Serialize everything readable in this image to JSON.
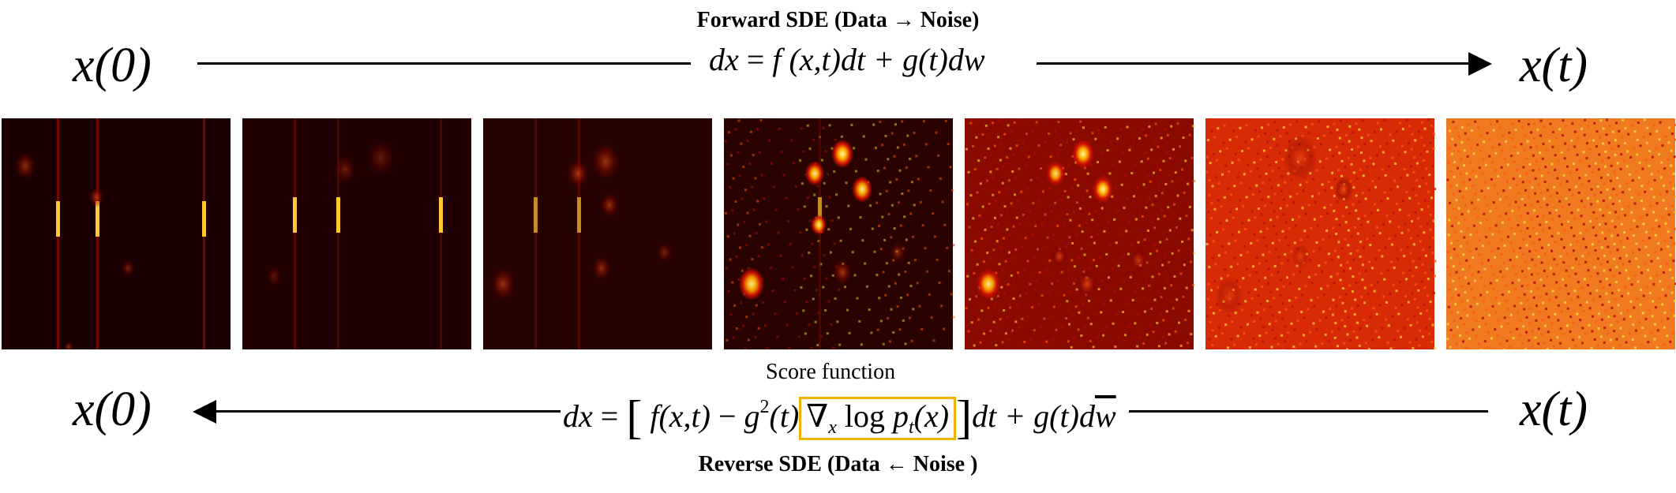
{
  "forward": {
    "title": "Forward SDE (Data → Noise)",
    "start_var": "x(0)",
    "end_var": "x(t)",
    "equation": {
      "lhs": "dx",
      "rhs_a": "f",
      "rhs_b": "(x,t)",
      "rhs_c": "dt + g",
      "rhs_d": "(t)",
      "rhs_e": "dw"
    }
  },
  "reverse": {
    "title": "Reverse SDE (Data ← Noise )",
    "start_var": "x(t)",
    "end_var": "x(0)",
    "score_label": "Score function",
    "equation": {
      "lhs": "dx",
      "term1_f": "f",
      "term1_args": "(x,t)",
      "minus_g": "g",
      "g_sup": "2",
      "g_args": "(t)",
      "nabla": "∇",
      "nabla_sub": "x",
      "log": "log",
      "p": "p",
      "p_sub": "t",
      "p_args": "(x)",
      "tail_a": "dt + g",
      "tail_b": "(t)",
      "tail_d": "d",
      "tail_w": "w"
    }
  },
  "colors": {
    "score_box": "#f0b400",
    "heat_dark": "#1a0000",
    "heat_mid": "#d01000",
    "heat_bright": "#fff27a"
  },
  "frames": [
    {
      "noise_level": 0.0
    },
    {
      "noise_level": 0.08
    },
    {
      "noise_level": 0.2
    },
    {
      "noise_level": 0.35
    },
    {
      "noise_level": 0.55
    },
    {
      "noise_level": 0.8
    },
    {
      "noise_level": 1.0
    }
  ]
}
